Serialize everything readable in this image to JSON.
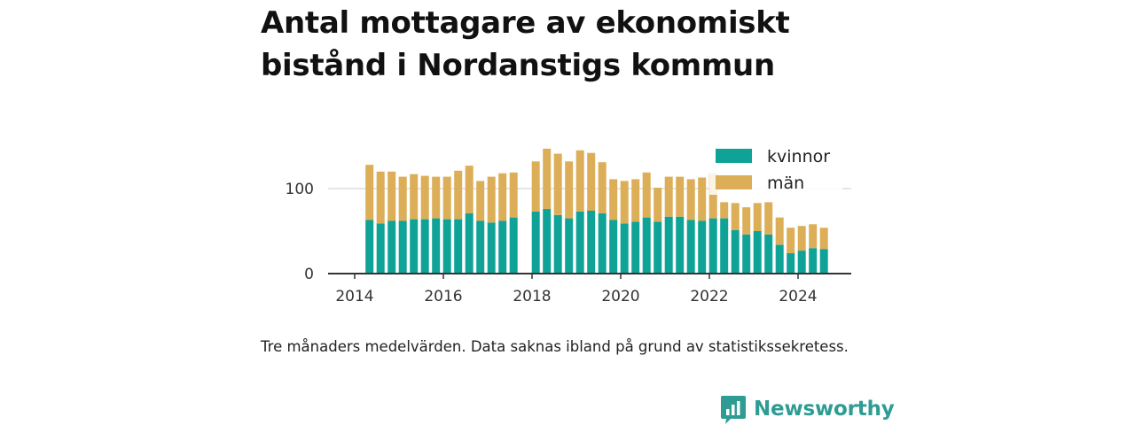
{
  "title_lines": [
    "Antal mottagare av ekonomiskt",
    "bistånd i Nordanstigs kommun"
  ],
  "caption": "Tre månaders medelvärden. Data saknas ibland på grund av statistikssekretess.",
  "brand": {
    "name": "Newsworthy",
    "icon": "newsworthy-logo-icon",
    "color": "#2f9c94"
  },
  "colors": {
    "kvinnor": "#0fa397",
    "man": "#dcae58",
    "axis": "#333333",
    "grid": "#dddddd"
  },
  "chart_data": {
    "type": "bar",
    "stacked": true,
    "title": "Antal mottagare av ekonomiskt bistånd i Nordanstigs kommun",
    "xlabel": "",
    "ylabel": "",
    "xlim": [
      2013.4,
      2025.2
    ],
    "ylim": [
      0,
      150
    ],
    "x_ticks": [
      "2014",
      "2016",
      "2018",
      "2020",
      "2022",
      "2024"
    ],
    "y_ticks": [
      "0",
      "100"
    ],
    "grid": "horizontal",
    "legend": "top-right",
    "x": [
      "2014-05",
      "2014-08",
      "2014-11",
      "2015-02",
      "2015-05",
      "2015-08",
      "2015-11",
      "2016-02",
      "2016-05",
      "2016-08",
      "2016-11",
      "2017-02",
      "2017-05",
      "2017-08",
      "2017-11",
      "2018-02",
      "2018-05",
      "2018-08",
      "2018-11",
      "2019-02",
      "2019-05",
      "2019-08",
      "2019-11",
      "2020-02",
      "2020-05",
      "2020-08",
      "2020-11",
      "2021-02",
      "2021-05",
      "2021-08",
      "2021-11",
      "2022-02",
      "2022-05",
      "2022-08",
      "2022-11",
      "2023-02",
      "2023-05",
      "2023-08",
      "2023-11",
      "2024-02",
      "2024-05",
      "2024-08"
    ],
    "series": [
      {
        "name": "kvinnor",
        "values": [
          63,
          59,
          62,
          62,
          64,
          64,
          65,
          64,
          64,
          71,
          62,
          60,
          62,
          66,
          null,
          73,
          76,
          69,
          65,
          73,
          74,
          71,
          63,
          59,
          61,
          66,
          61,
          67,
          67,
          63,
          62,
          65,
          65,
          51,
          46,
          50,
          46,
          34,
          24,
          27,
          30,
          29
        ]
      },
      {
        "name": "män",
        "values": [
          65,
          61,
          58,
          52,
          53,
          51,
          49,
          50,
          57,
          56,
          47,
          54,
          56,
          53,
          null,
          59,
          71,
          72,
          67,
          72,
          68,
          60,
          48,
          50,
          50,
          53,
          40,
          47,
          47,
          48,
          51,
          53,
          19,
          32,
          32,
          33,
          38,
          32,
          30,
          29,
          28,
          25
        ]
      }
    ]
  }
}
